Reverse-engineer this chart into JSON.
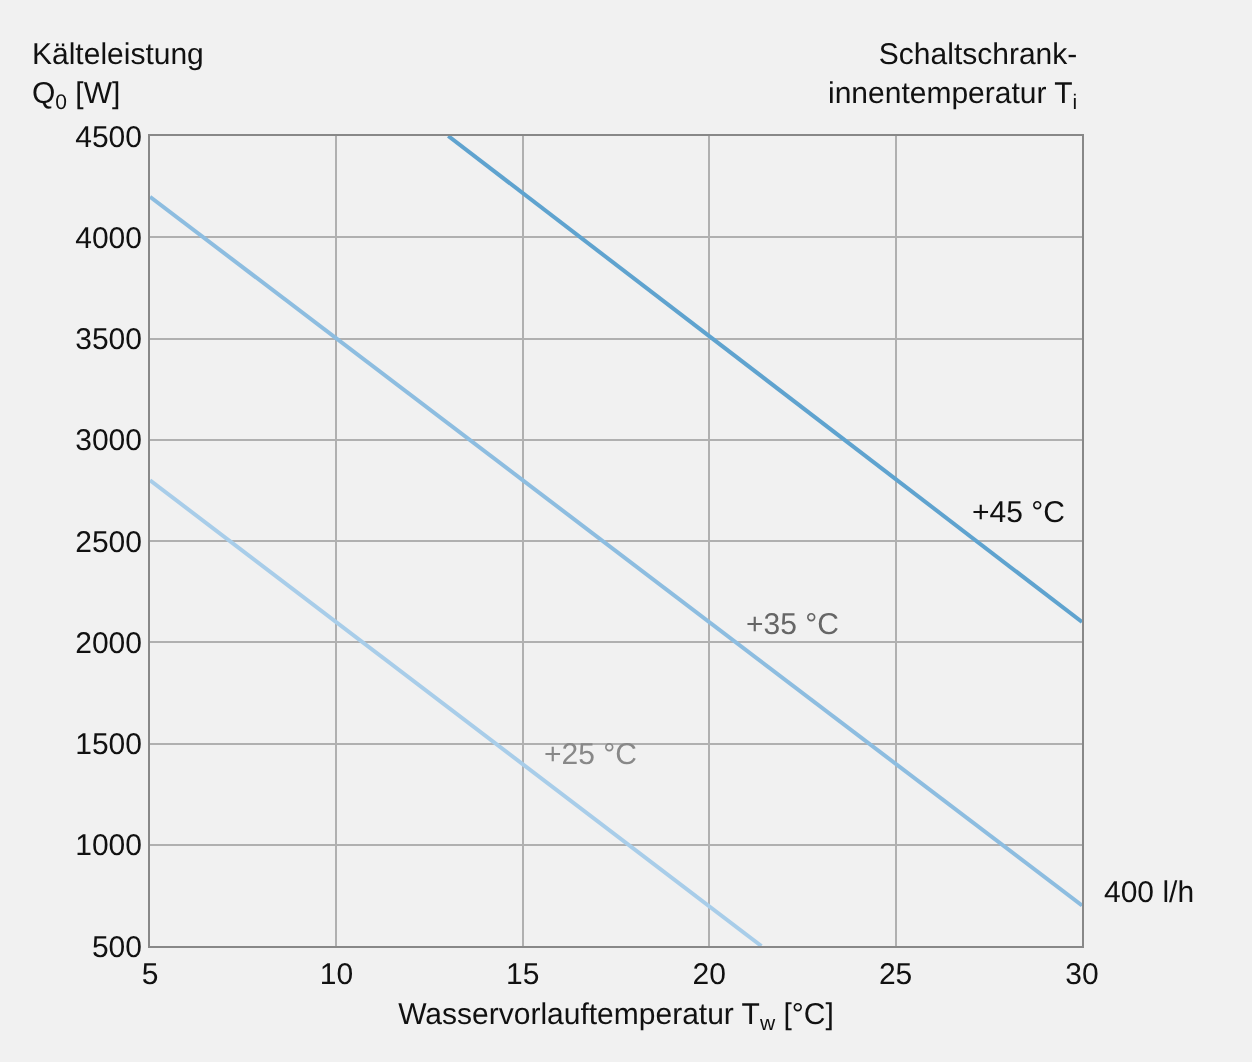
{
  "chart_data": {
    "type": "line",
    "ylabel": "Kälteleistung\nQ$_{0}$ [W]",
    "xlabel": "Wasservorlauftemperatur T$_{w}$ [°C]",
    "legend_title": "Schaltschrank-\ninnentemperatur T$_{i}$",
    "series": [
      {
        "name": "+45 °C",
        "x": [
          13,
          30
        ],
        "values": [
          4500,
          2100
        ],
        "color": "#5fa3cf"
      },
      {
        "name": "+35 °C",
        "x": [
          5,
          30
        ],
        "values": [
          4200,
          700
        ],
        "color": "#8dbde0"
      },
      {
        "name": "+25 °C",
        "x": [
          5,
          21.4
        ],
        "values": [
          2800,
          500
        ],
        "color": "#a8cde9"
      }
    ],
    "annotations": [
      "400 l/h"
    ],
    "xlim": [
      5,
      30
    ],
    "xticks": [
      5,
      10,
      15,
      20,
      25,
      30
    ],
    "ylim": [
      500,
      4500
    ],
    "yticks": [
      500,
      1000,
      1500,
      2000,
      2500,
      3000,
      3500,
      4000,
      4500
    ],
    "grid": true,
    "legend": false,
    "marker": "none",
    "line_style": "solid"
  }
}
